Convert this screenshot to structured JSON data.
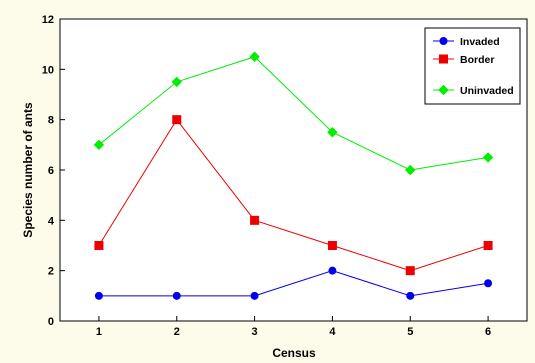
{
  "chart_data": {
    "type": "line",
    "title": "",
    "xlabel": "Census",
    "ylabel": "Species number of ants",
    "categories": [
      "1",
      "2",
      "3",
      "4",
      "5",
      "6"
    ],
    "x": [
      1,
      2,
      3,
      4,
      5,
      6
    ],
    "xlim": [
      0.5,
      6.5
    ],
    "ylim": [
      0,
      12
    ],
    "yticks": [
      "0",
      "2",
      "4",
      "6",
      "8",
      "10",
      "12"
    ],
    "grid": false,
    "legend_position": "top-right",
    "series": [
      {
        "name": "Invaded",
        "values": [
          1,
          1,
          1,
          2,
          1,
          1.5
        ],
        "color": "#0000ee",
        "marker": "circle"
      },
      {
        "name": "Border",
        "values": [
          3,
          8,
          4,
          3,
          2,
          3
        ],
        "color": "#ee0000",
        "marker": "square"
      },
      {
        "name": "Uninvaded",
        "values": [
          7,
          9.5,
          10.5,
          7.5,
          6,
          6.5
        ],
        "color": "#00ee00",
        "marker": "diamond"
      }
    ]
  }
}
